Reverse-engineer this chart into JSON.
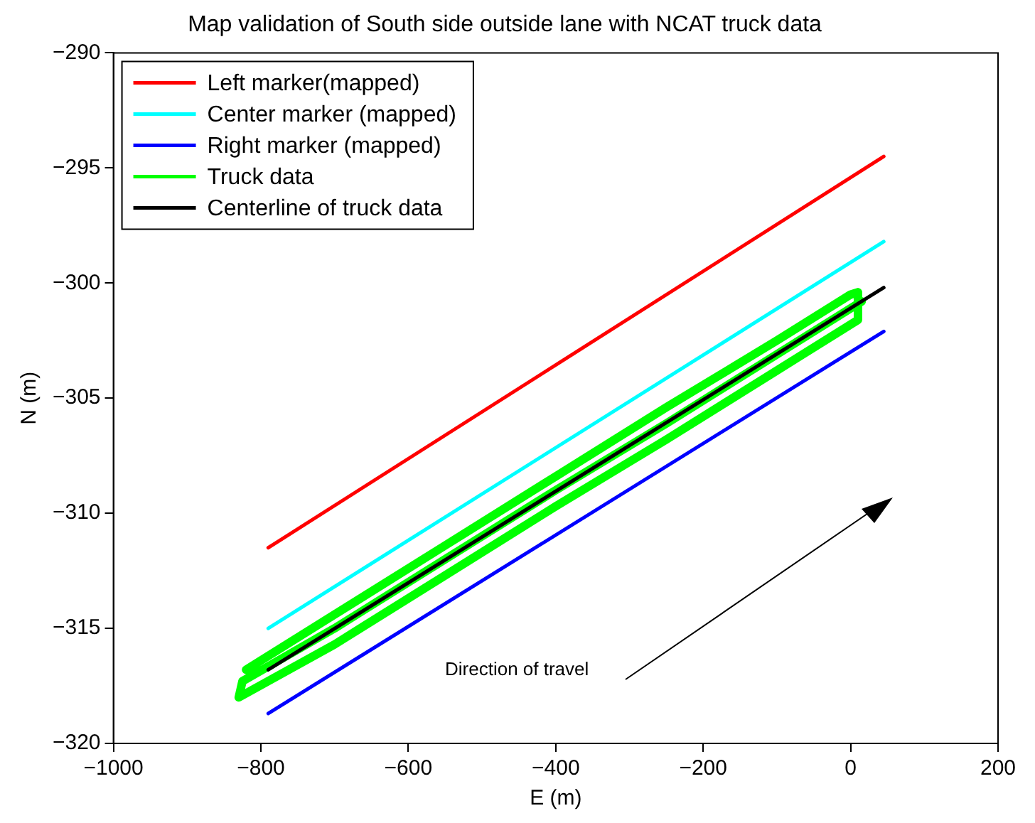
{
  "chart_data": {
    "type": "line",
    "title": "Map validation of South side outside lane with NCAT truck data",
    "xlabel": "E (m)",
    "ylabel": "N (m)",
    "xlim": [
      -1000,
      200
    ],
    "xticks": [
      -1000,
      -800,
      -600,
      -400,
      -200,
      0,
      200
    ],
    "ylim": [
      -320,
      -290
    ],
    "yticks": [
      -320,
      -315,
      -310,
      -305,
      -300,
      -295,
      -290
    ],
    "grid": false,
    "legend": "top left",
    "marker": "none",
    "line_style": "solid",
    "annotations": [
      "Direction of travel"
    ],
    "series": [
      {
        "name": "Left marker(mapped)",
        "color": "#ff0000",
        "x": [
          -790,
          45
        ],
        "values": [
          -311.5,
          -294.5
        ]
      },
      {
        "name": "Center marker (mapped)",
        "color": "#00ffff",
        "x": [
          -790,
          45
        ],
        "values": [
          -315,
          -298.2
        ]
      },
      {
        "name": "Right marker (mapped)",
        "color": "#0000ff",
        "x": [
          -790,
          45
        ],
        "values": [
          -318.7,
          -302.1
        ]
      },
      {
        "name": "Truck data",
        "color": "#00ff00",
        "x": [
          -820,
          -700,
          -550,
          -400,
          -250,
          -100,
          0,
          10,
          10,
          0,
          -100,
          -250,
          -400,
          -550,
          -700,
          -830,
          -825,
          -700,
          -550,
          -400,
          -250,
          -100,
          0,
          15
        ],
        "values": [
          -316.8,
          -314.4,
          -311.4,
          -308.4,
          -305.4,
          -302.5,
          -300.5,
          -300.4,
          -301.6,
          -301.8,
          -303.8,
          -306.8,
          -309.7,
          -312.7,
          -315.7,
          -318,
          -317.3,
          -315,
          -312,
          -309,
          -306.1,
          -303.1,
          -301.1,
          -300.8
        ]
      },
      {
        "name": "Centerline of truck data",
        "color": "#000000",
        "x": [
          -790,
          45
        ],
        "values": [
          -316.8,
          -300.2
        ]
      }
    ]
  }
}
